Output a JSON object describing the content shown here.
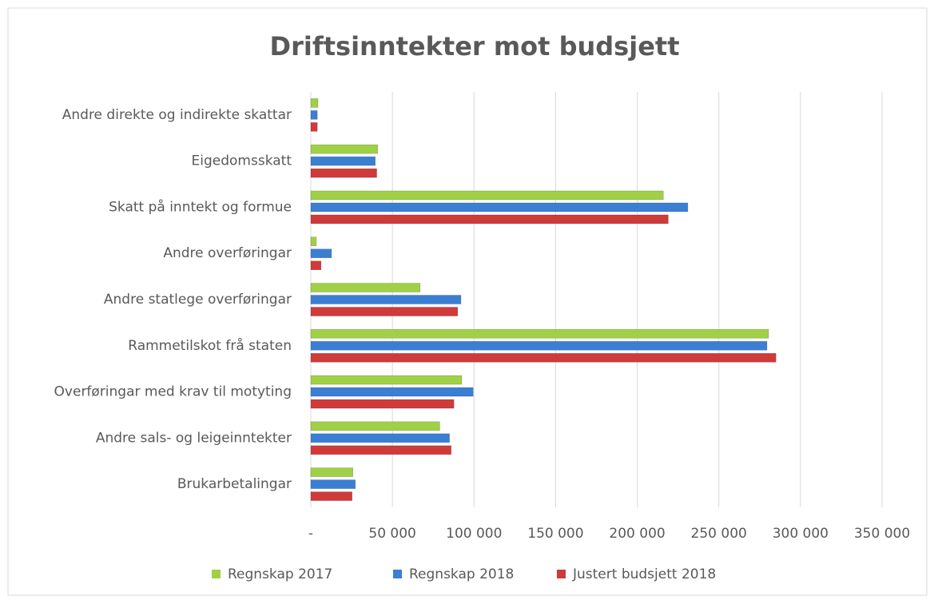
{
  "chart_data": {
    "type": "hbar",
    "title": "Driftsinntekter mot budsjett",
    "categories": [
      "Andre direkte og indirekte skattar",
      "Eigedomsskatt",
      "Skatt på inntekt og formue",
      "Andre overføringar",
      "Andre statlege overføringar",
      "Rammetilskot frå staten",
      "Overføringar med krav til motyting",
      "Andre sals- og leigeinntekter",
      "Brukarbetalingar"
    ],
    "series": [
      {
        "name": "Regnskap 2017",
        "color": "#9fd046",
        "values": [
          4400,
          41000,
          216000,
          3400,
          67000,
          280500,
          92500,
          79000,
          25800
        ]
      },
      {
        "name": "Regnskap 2018",
        "color": "#3b7fd4",
        "values": [
          4000,
          39500,
          231000,
          12700,
          92000,
          279500,
          99500,
          85000,
          27300
        ]
      },
      {
        "name": "Justert budsjett 2018",
        "color": "#d03a3a",
        "values": [
          4000,
          40400,
          219000,
          6300,
          90000,
          285000,
          87700,
          86000,
          25300
        ]
      }
    ],
    "xlim": [
      0,
      350000
    ],
    "xticks": [
      {
        "value": 0,
        "label": "-"
      },
      {
        "value": 50000,
        "label": "50 000"
      },
      {
        "value": 100000,
        "label": "100 000"
      },
      {
        "value": 150000,
        "label": "150 000"
      },
      {
        "value": 200000,
        "label": "200 000"
      },
      {
        "value": 250000,
        "label": "250 000"
      },
      {
        "value": 300000,
        "label": "300 000"
      },
      {
        "value": 350000,
        "label": "350 000"
      }
    ],
    "grid": true,
    "legend": "bottom"
  }
}
